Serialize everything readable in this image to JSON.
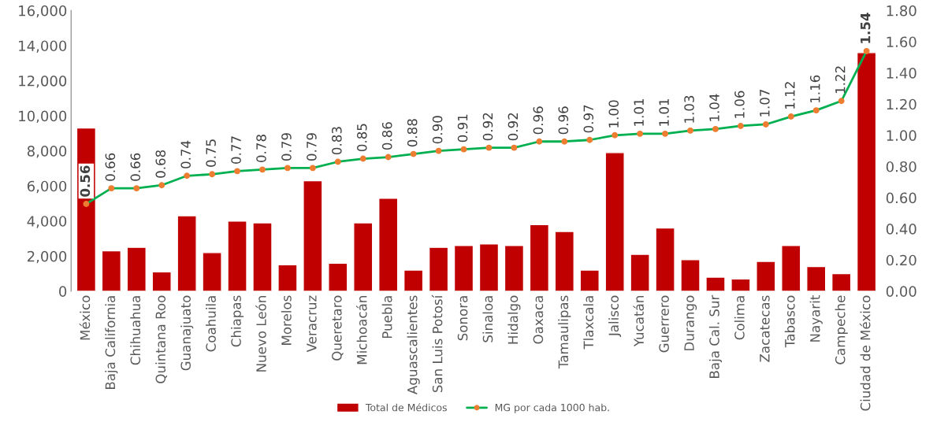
{
  "chart_data": {
    "type": "bar",
    "categories": [
      "México",
      "Baja California",
      "Chihuahua",
      "Quintana Roo",
      "Guanajuato",
      "Coahuila",
      "Chiapas",
      "Nuevo León",
      "Morelos",
      "Veracruz",
      "Queretaro",
      "Michoacán",
      "Puebla",
      "Aguascalientes",
      "San Luis Potosí",
      "Sonora",
      "Sinaloa",
      "Hidalgo",
      "Oaxaca",
      "Tamaulipas",
      "Tlaxcala",
      "Jalisco",
      "Yucatán",
      "Guerrero",
      "Durango",
      "Baja Cal. Sur",
      "Colima",
      "Zacatecas",
      "Tabasco",
      "Nayarit",
      "Campeche",
      "Ciudad de México"
    ],
    "series": [
      {
        "name": "Total de Médicos",
        "color": "#c00000",
        "values": [
          9300,
          2300,
          2500,
          1100,
          4300,
          2200,
          4000,
          3900,
          1500,
          6300,
          1600,
          3900,
          5300,
          1200,
          2500,
          2600,
          2700,
          2600,
          3800,
          3400,
          1200,
          7900,
          2100,
          3600,
          1800,
          800,
          700,
          1700,
          2600,
          1400,
          1000,
          13600
        ]
      },
      {
        "name": "MG por cada 1000 hab.",
        "type": "line",
        "axis": "y2",
        "color": "#00b050",
        "marker": "circle",
        "values": [
          0.56,
          0.66,
          0.66,
          0.68,
          0.74,
          0.75,
          0.77,
          0.78,
          0.79,
          0.79,
          0.83,
          0.85,
          0.86,
          0.88,
          0.9,
          0.91,
          0.92,
          0.92,
          0.96,
          0.96,
          0.97,
          1.0,
          1.01,
          1.01,
          1.03,
          1.04,
          1.06,
          1.07,
          1.12,
          1.16,
          1.22,
          1.54
        ],
        "value_labels": [
          "0.56",
          "0.66",
          "0.66",
          "0.68",
          "0.74",
          "0.75",
          "0.77",
          "0.78",
          "0.79",
          "0.79",
          "0.83",
          "0.85",
          "0.86",
          "0.88",
          "0.90",
          "0.91",
          "0.92",
          "0.92",
          "0.96",
          "0.96",
          "0.97",
          "1.00",
          "1.01",
          "1.01",
          "1.03",
          "1.04",
          "1.06",
          "1.07",
          "1.12",
          "1.16",
          "1.22",
          "1.54"
        ]
      }
    ],
    "ylim": [
      0,
      16000
    ],
    "yticks": [
      {
        "value": 0,
        "label": "0"
      },
      {
        "value": 2000,
        "label": "2,000"
      },
      {
        "value": 4000,
        "label": "4,000"
      },
      {
        "value": 6000,
        "label": "6,000"
      },
      {
        "value": 8000,
        "label": "8,000"
      },
      {
        "value": 10000,
        "label": "10,000"
      },
      {
        "value": 12000,
        "label": "12,000"
      },
      {
        "value": 14000,
        "label": "14,000"
      },
      {
        "value": 16000,
        "label": "16,000"
      }
    ],
    "y2lim": [
      0,
      1.8
    ],
    "y2ticks": [
      {
        "value": 0,
        "label": "0.00"
      },
      {
        "value": 0.2,
        "label": "0.20"
      },
      {
        "value": 0.4,
        "label": "0.40"
      },
      {
        "value": 0.6,
        "label": "0.60"
      },
      {
        "value": 0.8,
        "label": "0.80"
      },
      {
        "value": 1.0,
        "label": "1.00"
      },
      {
        "value": 1.2,
        "label": "1.20"
      },
      {
        "value": 1.4,
        "label": "1.40"
      },
      {
        "value": 1.6,
        "label": "1.60"
      },
      {
        "value": 1.8,
        "label": "1.80"
      }
    ],
    "grid": false,
    "legend": "bottom"
  }
}
